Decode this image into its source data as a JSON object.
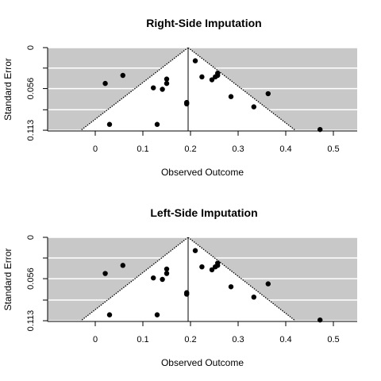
{
  "chart_data": [
    {
      "type": "scatter",
      "title": "Right-Side Imputation",
      "xlabel": "Observed Outcome",
      "ylabel": "Standard Error",
      "xlim": [
        -0.1,
        0.55
      ],
      "ylim": [
        0.114,
        0
      ],
      "y_reversed": true,
      "x_ticks": [
        0,
        0.1,
        0.2,
        0.3,
        0.4,
        0.5
      ],
      "x_tick_labels": [
        "0",
        "0.1",
        "0.2",
        "0.3",
        "0.4",
        "0.5"
      ],
      "y_ticks": [
        0,
        0.028,
        0.056,
        0.085,
        0.113
      ],
      "y_tick_labels": [
        "0",
        "",
        "0.056",
        "",
        "0.113"
      ],
      "background_region": "gray",
      "gridlines": "white horizontal",
      "center_estimate": 0.195,
      "funnel_apex": [
        0.195,
        0
      ],
      "funnel_base": [
        -0.03,
        0.113,
        0.42,
        0.113
      ],
      "points": [
        {
          "x": 0.021,
          "y": 0.049
        },
        {
          "x": 0.058,
          "y": 0.038
        },
        {
          "x": 0.03,
          "y": 0.105
        },
        {
          "x": 0.122,
          "y": 0.055
        },
        {
          "x": 0.141,
          "y": 0.057
        },
        {
          "x": 0.15,
          "y": 0.043
        },
        {
          "x": 0.15,
          "y": 0.049
        },
        {
          "x": 0.13,
          "y": 0.105
        },
        {
          "x": 0.192,
          "y": 0.075
        },
        {
          "x": 0.192,
          "y": 0.077
        },
        {
          "x": 0.21,
          "y": 0.018
        },
        {
          "x": 0.224,
          "y": 0.04
        },
        {
          "x": 0.245,
          "y": 0.044
        },
        {
          "x": 0.252,
          "y": 0.04
        },
        {
          "x": 0.257,
          "y": 0.038
        },
        {
          "x": 0.257,
          "y": 0.035
        },
        {
          "x": 0.285,
          "y": 0.067
        },
        {
          "x": 0.333,
          "y": 0.081
        },
        {
          "x": 0.363,
          "y": 0.063
        },
        {
          "x": 0.472,
          "y": 0.112
        }
      ]
    },
    {
      "type": "scatter",
      "title": "Left-Side Imputation",
      "xlabel": "Observed Outcome",
      "ylabel": "Standard Error",
      "xlim": [
        -0.1,
        0.55
      ],
      "ylim": [
        0.114,
        0
      ],
      "y_reversed": true,
      "x_ticks": [
        0,
        0.1,
        0.2,
        0.3,
        0.4,
        0.5
      ],
      "x_tick_labels": [
        "0",
        "0.1",
        "0.2",
        "0.3",
        "0.4",
        "0.5"
      ],
      "y_ticks": [
        0,
        0.028,
        0.056,
        0.085,
        0.113
      ],
      "y_tick_labels": [
        "0",
        "",
        "0.056",
        "",
        "0.113"
      ],
      "background_region": "gray",
      "gridlines": "white horizontal",
      "center_estimate": 0.195,
      "funnel_apex": [
        0.195,
        0
      ],
      "funnel_base": [
        -0.03,
        0.113,
        0.42,
        0.113
      ],
      "points": [
        {
          "x": 0.021,
          "y": 0.049
        },
        {
          "x": 0.058,
          "y": 0.038
        },
        {
          "x": 0.03,
          "y": 0.105
        },
        {
          "x": 0.122,
          "y": 0.055
        },
        {
          "x": 0.141,
          "y": 0.057
        },
        {
          "x": 0.15,
          "y": 0.043
        },
        {
          "x": 0.15,
          "y": 0.049
        },
        {
          "x": 0.13,
          "y": 0.105
        },
        {
          "x": 0.192,
          "y": 0.075
        },
        {
          "x": 0.192,
          "y": 0.077
        },
        {
          "x": 0.21,
          "y": 0.018
        },
        {
          "x": 0.224,
          "y": 0.04
        },
        {
          "x": 0.245,
          "y": 0.044
        },
        {
          "x": 0.252,
          "y": 0.04
        },
        {
          "x": 0.257,
          "y": 0.038
        },
        {
          "x": 0.257,
          "y": 0.035
        },
        {
          "x": 0.285,
          "y": 0.067
        },
        {
          "x": 0.333,
          "y": 0.081
        },
        {
          "x": 0.363,
          "y": 0.063
        },
        {
          "x": 0.472,
          "y": 0.112
        }
      ]
    }
  ]
}
